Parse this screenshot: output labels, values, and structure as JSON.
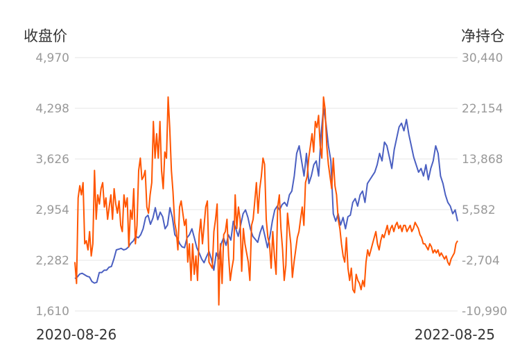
{
  "chart_data": {
    "type": "line",
    "title": "",
    "y_left_label": "收盘价",
    "y_right_label": "净持仓",
    "y_left_ticks": [
      "4,970",
      "4,298",
      "3,626",
      "2,954",
      "2,282",
      "1,610"
    ],
    "y_right_ticks": [
      "30,440",
      "22,154",
      "13,868",
      "5,582",
      "-2,704",
      "-10,990"
    ],
    "y_left_range": [
      1610,
      4970
    ],
    "y_right_range": [
      -10990,
      30440
    ],
    "x_start": "2020-08-26",
    "x_end": "2022-08-25",
    "grid": true,
    "series": [
      {
        "name": "收盘价",
        "axis": "left",
        "color": "#4a5fc1",
        "values": [
          2040,
          2060,
          2100,
          2110,
          2090,
          2070,
          2060,
          2000,
          1980,
          1990,
          2120,
          2120,
          2150,
          2150,
          2190,
          2200,
          2300,
          2420,
          2430,
          2440,
          2420,
          2430,
          2460,
          2510,
          2540,
          2600,
          2580,
          2620,
          2700,
          2850,
          2880,
          2760,
          2840,
          2980,
          2820,
          2920,
          2860,
          2700,
          2750,
          2980,
          2850,
          2620,
          2580,
          2500,
          2460,
          2450,
          2580,
          2620,
          2700,
          2580,
          2450,
          2380,
          2300,
          2250,
          2330,
          2400,
          2300,
          2150,
          2380,
          2300,
          2500,
          2580,
          2480,
          2620,
          2550,
          2800,
          2700,
          2600,
          2750,
          2900,
          2950,
          2850,
          2700,
          2600,
          2560,
          2520,
          2650,
          2740,
          2600,
          2450,
          2600,
          2800,
          2950,
          3000,
          2950,
          3020,
          3050,
          3000,
          3150,
          3200,
          3400,
          3700,
          3800,
          3600,
          3400,
          3700,
          3300,
          3400,
          3550,
          3600,
          3400,
          3950,
          4300,
          4100,
          3800,
          3600,
          2900,
          2800,
          2900,
          2750,
          2850,
          2700,
          2860,
          2880,
          3050,
          3100,
          3000,
          3150,
          3200,
          3050,
          3300,
          3350,
          3400,
          3450,
          3550,
          3700,
          3600,
          3850,
          3800,
          3650,
          3500,
          3750,
          3900,
          4050,
          4100,
          4000,
          4150,
          3950,
          3800,
          3650,
          3550,
          3450,
          3500,
          3400,
          3550,
          3350,
          3500,
          3600,
          3800,
          3700,
          3400,
          3300,
          3150,
          3050,
          3000,
          2900,
          2950,
          2800
        ]
      },
      {
        "name": "净持仓",
        "axis": "right",
        "color": "#ff5500",
        "values": [
          -3000,
          -6500,
          7500,
          9500,
          8000,
          10000,
          0,
          500,
          -1000,
          2000,
          -2000,
          0,
          12000,
          4000,
          8000,
          6500,
          9000,
          10000,
          6000,
          7500,
          4000,
          6000,
          8000,
          4000,
          9000,
          6500,
          5000,
          7000,
          3000,
          2000,
          8000,
          6000,
          7500,
          -500,
          5500,
          4000,
          9000,
          0,
          3000,
          12000,
          14000,
          10500,
          11000,
          12000,
          6000,
          5000,
          8000,
          10000,
          20000,
          14000,
          18000,
          14000,
          20000,
          12000,
          9000,
          15000,
          14000,
          24000,
          19000,
          12000,
          8500,
          3500,
          2000,
          -1000,
          6000,
          7000,
          5000,
          3000,
          4000,
          -3000,
          0,
          -6000,
          0,
          -5000,
          -2000,
          -6000,
          1500,
          4000,
          0,
          3000,
          6000,
          7000,
          -3000,
          -3500,
          -4000,
          2000,
          4000,
          6500,
          -10000,
          0,
          -6500,
          1500,
          2000,
          4000,
          -2000,
          -6000,
          -4000,
          -2500,
          8000,
          2500,
          6000,
          4000,
          -4500,
          2500,
          0,
          -1500,
          -3000,
          -6000,
          3000,
          4000,
          7000,
          10000,
          5000,
          9000,
          11000,
          14000,
          13000,
          4000,
          1000,
          0,
          -4000,
          2000,
          -2000,
          -5000,
          6000,
          8000,
          2500,
          -1000,
          -6000,
          -3500,
          5000,
          2500,
          0,
          -5500,
          -3000,
          -1000,
          1000,
          2000,
          4000,
          6000,
          3000,
          10000,
          11000,
          14000,
          16000,
          18000,
          15000,
          20000,
          19000,
          21000,
          16000,
          14000,
          24000,
          22000,
          16000,
          13000,
          11000,
          9000,
          14000,
          9500,
          8000,
          4000,
          2500,
          0,
          -2000,
          -3000,
          1000,
          -4000,
          -6000,
          -4000,
          -7500,
          -8000,
          -5000,
          -6000,
          -6500,
          -7500,
          -6000,
          -7000,
          -3000,
          -1000,
          -2000,
          -1000,
          0,
          1000,
          2000,
          0,
          -1000,
          500,
          1500,
          1000,
          2000,
          3000,
          1500,
          2500,
          3000,
          2000,
          3000,
          3500,
          2500,
          3000,
          2000,
          3000,
          3000,
          2000,
          2500,
          3000,
          2000,
          2500,
          3500,
          3000,
          2500,
          1500,
          1000,
          0,
          0,
          -500,
          -1000,
          0,
          -500,
          -1500,
          -1000,
          -1500,
          -1000,
          -2000,
          -1500,
          -2000,
          -2500,
          -2000,
          -3000,
          -3500,
          -2500,
          -2000,
          -1500,
          0,
          500
        ]
      }
    ]
  }
}
